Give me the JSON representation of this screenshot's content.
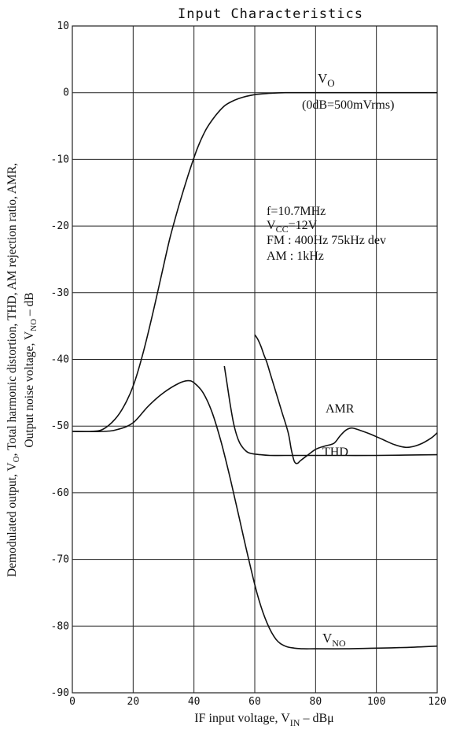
{
  "chart_data": {
    "type": "line",
    "title": "Input Characteristics",
    "xlabel": {
      "main": "IF input voltage, V",
      "sub": "IN",
      "unit": "  –  dBμ"
    },
    "ylabel": {
      "line1_pre": "Demodulated output, V",
      "line1_sub": "O",
      "line1_post": ", Total harmonic distortion, THD, AM rejection ratio, AMR,",
      "line2_pre": "Output noise voltage, V",
      "line2_sub": "NO",
      "line2_post": "  –  dB"
    },
    "xlim": [
      0,
      120
    ],
    "ylim": [
      -90,
      10
    ],
    "xticks": [
      0,
      20,
      40,
      60,
      80,
      100,
      120
    ],
    "yticks": [
      10,
      0,
      -10,
      -20,
      -30,
      -40,
      -50,
      -60,
      -70,
      -80,
      -90
    ],
    "grid": true,
    "conditions": {
      "f": "f=10.7MHz",
      "vcc_pre": "V",
      "vcc_sub": "CC",
      "vcc_post": "=12V",
      "fm": "FM : 400Hz 75kHz dev",
      "am": "AM : 1kHz"
    },
    "reference_note": "(0dB=500mVrms)",
    "series": [
      {
        "name": "VO",
        "label_main": "V",
        "label_sub": "O",
        "x": [
          0,
          6,
          10,
          14,
          17,
          20,
          23,
          26,
          29,
          32,
          35,
          38,
          41,
          44,
          47,
          50,
          53,
          56,
          60,
          65,
          70,
          80,
          90,
          100,
          120
        ],
        "y": [
          -50.8,
          -50.8,
          -50.5,
          -49,
          -47,
          -44,
          -39.5,
          -34,
          -28,
          -22,
          -17,
          -12.5,
          -8.5,
          -5.5,
          -3.5,
          -2,
          -1.2,
          -0.7,
          -0.3,
          -0.1,
          0,
          0,
          0,
          0,
          0
        ]
      },
      {
        "name": "VNO",
        "label_main": "V",
        "label_sub": "NO",
        "x": [
          0,
          10,
          15,
          20,
          25,
          30,
          35,
          38,
          40,
          43,
          46,
          49,
          52,
          55,
          58,
          61,
          64,
          67,
          70,
          73,
          76,
          80,
          90,
          100,
          110,
          120
        ],
        "y": [
          -50.8,
          -50.8,
          -50.5,
          -49.5,
          -47,
          -45,
          -43.6,
          -43.2,
          -43.5,
          -45,
          -48,
          -52.5,
          -58,
          -64,
          -70,
          -75.5,
          -79.5,
          -82,
          -83,
          -83.3,
          -83.4,
          -83.4,
          -83.4,
          -83.3,
          -83.2,
          -83
        ]
      },
      {
        "name": "THD",
        "label_main": "THD",
        "x": [
          50,
          51,
          52,
          53,
          54,
          55,
          56,
          57,
          58,
          60,
          62,
          65,
          70,
          80,
          90,
          100,
          120
        ],
        "y": [
          -41,
          -44,
          -47,
          -49.5,
          -51.3,
          -52.5,
          -53.2,
          -53.7,
          -54,
          -54.2,
          -54.3,
          -54.4,
          -54.4,
          -54.4,
          -54.4,
          -54.4,
          -54.3
        ]
      },
      {
        "name": "AMR",
        "label_main": "AMR",
        "x": [
          60,
          61,
          62,
          63,
          64,
          65,
          67,
          69,
          71,
          72,
          73,
          74,
          75,
          77,
          80,
          83,
          86,
          88,
          90,
          92,
          95,
          98,
          102,
          106,
          110,
          114,
          118,
          120
        ],
        "y": [
          -36.3,
          -37,
          -38,
          -39.3,
          -40.5,
          -42,
          -45,
          -48,
          -51,
          -53.5,
          -55.3,
          -55.6,
          -55.2,
          -54.5,
          -53.5,
          -53,
          -52.6,
          -51.5,
          -50.6,
          -50.3,
          -50.7,
          -51.2,
          -52,
          -52.8,
          -53.2,
          -52.8,
          -51.8,
          -51
        ]
      }
    ]
  }
}
